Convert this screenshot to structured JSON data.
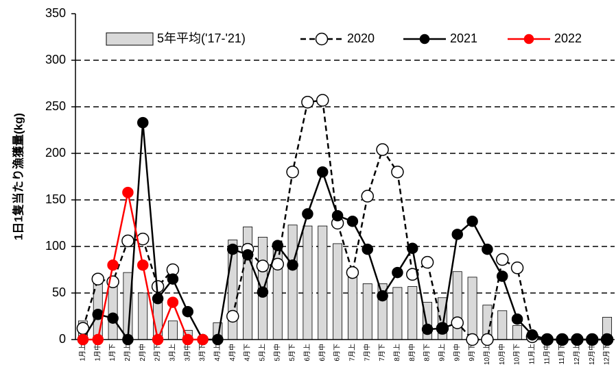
{
  "chart_data": {
    "type": "bar_line",
    "y_label": "1日1隻当たり漁獲量(kg)",
    "categories": [
      "1月上",
      "1月中",
      "1月下",
      "2月上",
      "2月中",
      "2月下",
      "3月上",
      "3月中",
      "3月下",
      "4月上",
      "4月中",
      "4月下",
      "5月上",
      "5月中",
      "5月下",
      "6月上",
      "6月中",
      "6月下",
      "7月上",
      "7月中",
      "7月下",
      "8月上",
      "8月中",
      "8月下",
      "9月上",
      "9月中",
      "9月下",
      "10月上",
      "10月中",
      "10月下",
      "11月上",
      "11月中",
      "11月下",
      "12月上",
      "12月中",
      "12月下"
    ],
    "series": [
      {
        "name": "5年平均('17-'21)",
        "kind": "bar",
        "color": "#d9d9d9",
        "values": [
          20,
          60,
          60,
          72,
          50,
          45,
          20,
          10,
          0,
          18,
          107,
          121,
          110,
          100,
          123,
          122,
          122,
          103,
          70,
          60,
          60,
          56,
          57,
          40,
          45,
          73,
          67,
          37,
          31,
          15,
          5,
          0,
          0,
          0,
          0,
          24
        ]
      },
      {
        "name": "2020",
        "kind": "line",
        "color": "#000000",
        "dashed": true,
        "marker": "open",
        "values": [
          12,
          65,
          62,
          106,
          108,
          57,
          75,
          null,
          null,
          null,
          25,
          97,
          79,
          81,
          180,
          255,
          257,
          125,
          72,
          154,
          204,
          180,
          70,
          83,
          12,
          18,
          0,
          0,
          86,
          77,
          3,
          0,
          0,
          0,
          0,
          0
        ]
      },
      {
        "name": "2021",
        "kind": "line",
        "color": "#000000",
        "dashed": false,
        "marker": "filled",
        "values": [
          0,
          27,
          23,
          0,
          233,
          44,
          65,
          30,
          0,
          0,
          97,
          91,
          51,
          101,
          80,
          135,
          180,
          133,
          127,
          97,
          47,
          72,
          98,
          11,
          12,
          113,
          127,
          97,
          68,
          22,
          5,
          0,
          0,
          0,
          0,
          0
        ]
      },
      {
        "name": "2022",
        "kind": "line",
        "color": "#ff0000",
        "dashed": false,
        "marker": "filled",
        "values": [
          0,
          0,
          80,
          158,
          80,
          0,
          40,
          0,
          0,
          null,
          null,
          null,
          null,
          null,
          null,
          null,
          null,
          null,
          null,
          null,
          null,
          null,
          null,
          null,
          null,
          null,
          null,
          null,
          null,
          null,
          null,
          null,
          null,
          null,
          null,
          null
        ]
      }
    ],
    "ylim": [
      0,
      350
    ],
    "yticks": [
      0,
      50,
      100,
      150,
      200,
      250,
      300,
      350
    ],
    "grid": true
  }
}
